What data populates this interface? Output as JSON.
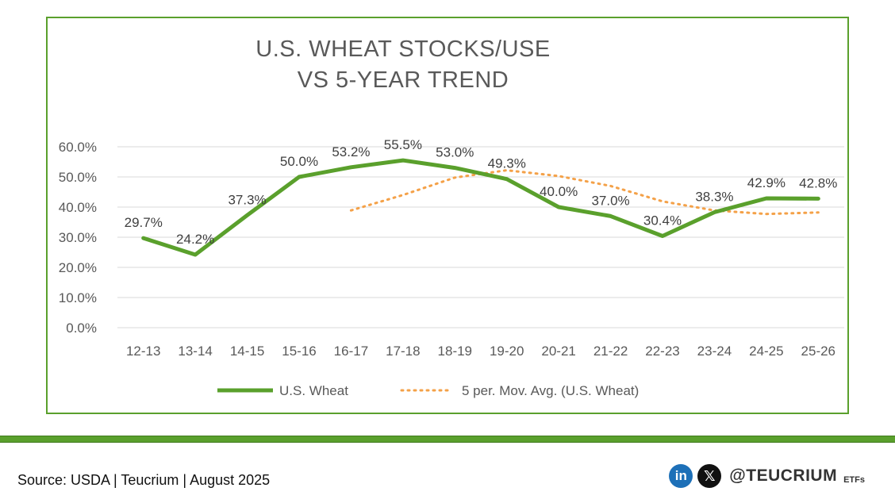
{
  "chart_data": {
    "type": "line",
    "title": [
      "U.S. WHEAT STOCKS/USE",
      "VS 5-YEAR TREND"
    ],
    "categories": [
      "12-13",
      "13-14",
      "14-15",
      "15-16",
      "16-17",
      "17-18",
      "18-19",
      "19-20",
      "20-21",
      "21-22",
      "22-23",
      "23-24",
      "24-25",
      "25-26"
    ],
    "ylim": [
      0,
      60
    ],
    "yticks": [
      0,
      10,
      20,
      30,
      40,
      50,
      60
    ],
    "ytick_labels": [
      "0.0%",
      "10.0%",
      "20.0%",
      "30.0%",
      "40.0%",
      "50.0%",
      "60.0%"
    ],
    "grid": true,
    "legend_position": "bottom",
    "series": [
      {
        "name": "U.S. Wheat",
        "color": "#5aa02c",
        "style": "solid",
        "values": [
          29.7,
          24.2,
          37.3,
          50.0,
          53.2,
          55.5,
          53.0,
          49.3,
          40.0,
          37.0,
          30.4,
          38.3,
          42.9,
          42.8
        ],
        "labels": [
          "29.7%",
          "24.2%",
          "37.3%",
          "50.0%",
          "53.2%",
          "55.5%",
          "53.0%",
          "49.3%",
          "40.0%",
          "37.0%",
          "30.4%",
          "38.3%",
          "42.9%",
          "42.8%"
        ]
      },
      {
        "name": "5 per. Mov. Avg. (U.S. Wheat)",
        "color": "#f4a148",
        "style": "dotted",
        "values": [
          null,
          null,
          null,
          null,
          38.9,
          44.0,
          49.8,
          52.2,
          50.3,
          47.0,
          41.9,
          38.9,
          37.7,
          38.2
        ]
      }
    ]
  },
  "footer": {
    "source": "Source: USDA | Teucrium | August 2025",
    "handle": "@TEUCRIUM",
    "suffix": "ETFs",
    "linkedin": "in",
    "x": "𝕏",
    "accent": "#5aa02c"
  }
}
